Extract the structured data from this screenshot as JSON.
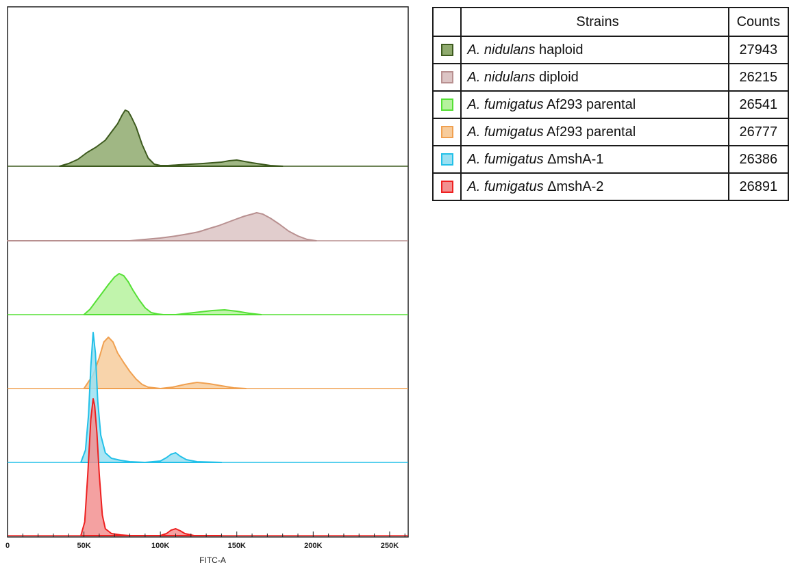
{
  "chart_data": {
    "type": "area",
    "xlabel": "FITC-A",
    "xlim": [
      0,
      262144
    ],
    "x_ticks": [
      0,
      50000,
      100000,
      150000,
      200000,
      250000
    ],
    "x_tick_labels": [
      "0",
      "50K",
      "100K",
      "150K",
      "200K",
      "250K"
    ],
    "layout": "stacked-offset histograms, one per strain",
    "grid": false,
    "series": [
      {
        "name": "A. nidulans haploid",
        "count": 27943,
        "color": "#3d5a1e",
        "fill": "#8faa6e",
        "x": [
          34000,
          40000,
          46000,
          52000,
          58000,
          64000,
          68000,
          72000,
          75000,
          77000,
          79000,
          81000,
          84000,
          88000,
          92000,
          96000,
          100000,
          105000,
          112000,
          120000,
          128000,
          134000,
          140000,
          145000,
          150000,
          155000,
          160000,
          166000,
          172000,
          180000
        ],
        "y": [
          0,
          4,
          10,
          20,
          28,
          38,
          50,
          62,
          75,
          82,
          80,
          72,
          58,
          32,
          12,
          3,
          1,
          1,
          2,
          3,
          4,
          5,
          6,
          8,
          9,
          7,
          5,
          3,
          1,
          0
        ]
      },
      {
        "name": "A. nidulans diploid",
        "count": 26215,
        "color": "#b89090",
        "fill": "#dcc4c4",
        "x": [
          0,
          80000,
          90000,
          100000,
          110000,
          118000,
          125000,
          132000,
          138000,
          144000,
          150000,
          155000,
          160000,
          163000,
          167000,
          172000,
          178000,
          184000,
          190000,
          196000,
          202000
        ],
        "y": [
          0,
          0,
          2,
          4,
          7,
          10,
          13,
          18,
          22,
          27,
          32,
          36,
          39,
          41,
          39,
          33,
          24,
          14,
          7,
          2,
          0
        ]
      },
      {
        "name": "A. fumigatus Af293 parental",
        "count": 26541,
        "color": "#55e035",
        "fill": "#b6f29e",
        "x": [
          50000,
          54000,
          58000,
          62000,
          66000,
          70000,
          73000,
          76000,
          79000,
          82000,
          86000,
          90000,
          94000,
          98000,
          102000,
          110000,
          118000,
          126000,
          134000,
          142000,
          150000,
          158000,
          166000
        ],
        "y": [
          0,
          8,
          20,
          32,
          44,
          55,
          60,
          57,
          48,
          36,
          22,
          10,
          3,
          1,
          0,
          0,
          2,
          4,
          6,
          7,
          5,
          2,
          0
        ]
      },
      {
        "name": "A. fumigatus Af293 parental",
        "count": 26777,
        "color": "#f0a050",
        "fill": "#f7cc9c",
        "x": [
          50000,
          56000,
          60000,
          63000,
          66000,
          69000,
          72000,
          76000,
          80000,
          84000,
          88000,
          92000,
          96000,
          100000,
          108000,
          116000,
          124000,
          132000,
          140000,
          148000,
          156000
        ],
        "y": [
          0,
          20,
          45,
          68,
          75,
          68,
          52,
          38,
          25,
          14,
          6,
          2,
          1,
          0,
          2,
          6,
          9,
          7,
          4,
          1,
          0
        ]
      },
      {
        "name": "A. fumigatus ΔmshA-1",
        "count": 26386,
        "color": "#22c0e8",
        "fill": "#9be0f2",
        "x": [
          48000,
          51000,
          53000,
          54500,
          56000,
          57500,
          59000,
          61000,
          64000,
          68000,
          74000,
          80000,
          90000,
          100000,
          104000,
          107000,
          110000,
          113000,
          117000,
          124000,
          140000
        ],
        "y": [
          0,
          18,
          70,
          140,
          190,
          160,
          90,
          40,
          14,
          6,
          3,
          1,
          0,
          2,
          7,
          12,
          14,
          9,
          4,
          1,
          0
        ]
      },
      {
        "name": "A. fumigatus ΔmshA-2",
        "count": 26891,
        "color": "#ee2020",
        "fill": "#f29090",
        "x": [
          48000,
          50500,
          52500,
          54500,
          56000,
          57000,
          58500,
          60000,
          62000,
          64000,
          68000,
          74000,
          80000,
          100000,
          104000,
          107000,
          110000,
          113000,
          116000,
          122000,
          140000
        ],
        "y": [
          0,
          20,
          90,
          170,
          200,
          190,
          150,
          90,
          30,
          10,
          3,
          1,
          0,
          0,
          3,
          8,
          10,
          7,
          3,
          0,
          0
        ]
      }
    ]
  },
  "table": {
    "header_strains": "Strains",
    "header_counts": "Counts",
    "rows": [
      {
        "species": "A. nidulans",
        "suffix": " haploid",
        "count": "27943"
      },
      {
        "species": "A. nidulans",
        "suffix": " diploid",
        "count": "26215"
      },
      {
        "species": "A. fumigatus",
        "suffix": " Af293 parental",
        "count": "26541"
      },
      {
        "species": "A. fumigatus",
        "suffix": " Af293 parental",
        "count": "26777"
      },
      {
        "species": "A. fumigatus",
        "suffix": " ΔmshA-1",
        "count": "26386"
      },
      {
        "species": "A. fumigatus",
        "suffix": " ΔmshA-2",
        "count": "26891"
      }
    ]
  }
}
